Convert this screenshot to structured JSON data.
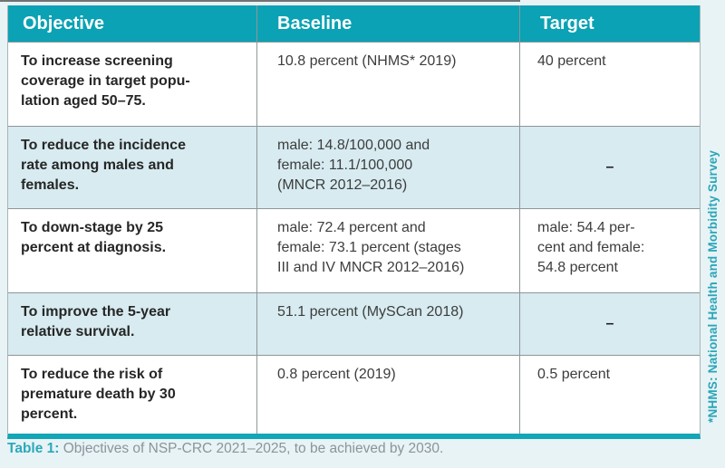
{
  "colors": {
    "header_bg": "#0aa2b4",
    "row_alt_bg": "#d7ebf0",
    "page_bg": "#e8f3f6",
    "bottom_rule_teal": "#12a6b6",
    "caption_label_color": "#2ba9b9",
    "caption_text_color": "#8b9499",
    "body_text": "#3d3d3d",
    "grid_line": "#8f9699"
  },
  "table": {
    "columns": [
      "Objective",
      "Baseline",
      "Target"
    ],
    "rows": [
      {
        "objective": "To increase screening\ncoverage in target popu-\nlation aged 50–75.",
        "baseline": "10.8 percent (NHMS* 2019)",
        "target": "40 percent"
      },
      {
        "objective": "To reduce the incidence\nrate among males and\nfemales.",
        "baseline": "male: 14.8/100,000 and\nfemale: 11.1/100,000\n(MNCR 2012–2016)",
        "target": "–"
      },
      {
        "objective": "To down-stage by 25\npercent at diagnosis.",
        "baseline": "male: 72.4 percent and\nfemale: 73.1 percent (stages\nIII and IV MNCR 2012–2016)",
        "target": "male: 54.4 per-\ncent and female:\n54.8 percent"
      },
      {
        "objective": "To improve the 5-year\nrelative survival.",
        "baseline": "51.1 percent (MySCan 2018)",
        "target": "–"
      },
      {
        "objective": "To reduce the risk of\npremature death by 30\npercent.",
        "baseline": "0.8 percent (2019)",
        "target": "0.5 percent"
      }
    ]
  },
  "caption": {
    "label": "Table 1:",
    "text": " Objectives of NSP-CRC 2021–2025, to be achieved by 2030."
  },
  "footnote_vertical": "*NHMS: National Health and Morbidity Survey"
}
